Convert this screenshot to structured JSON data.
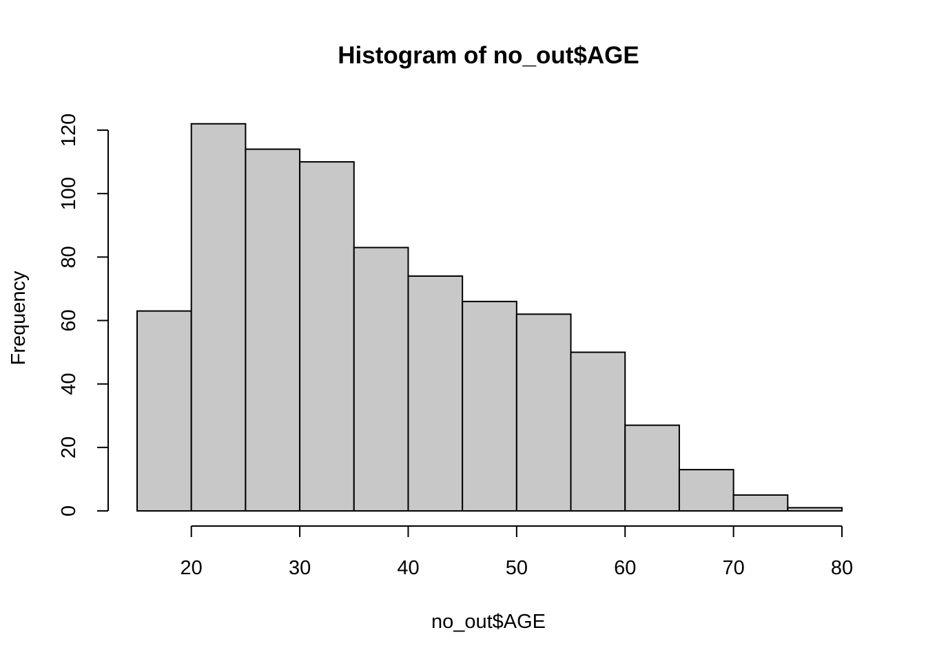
{
  "chart_data": {
    "type": "bar",
    "title": "Histogram of no_out$AGE",
    "xlabel": "no_out$AGE",
    "ylabel": "Frequency",
    "bin_edges": [
      15,
      20,
      25,
      30,
      35,
      40,
      45,
      50,
      55,
      60,
      65,
      70,
      75,
      80
    ],
    "values": [
      63,
      122,
      114,
      110,
      83,
      74,
      66,
      62,
      50,
      27,
      13,
      5,
      1
    ],
    "xlim": [
      15,
      80
    ],
    "ylim": [
      0,
      120
    ],
    "x_ticks": [
      "20",
      "30",
      "40",
      "50",
      "60",
      "70",
      "80"
    ],
    "y_ticks": [
      "0",
      "20",
      "40",
      "60",
      "80",
      "100",
      "120"
    ],
    "grid": false,
    "bar_color": "#c8c8c8",
    "edge_color": "#000000"
  }
}
